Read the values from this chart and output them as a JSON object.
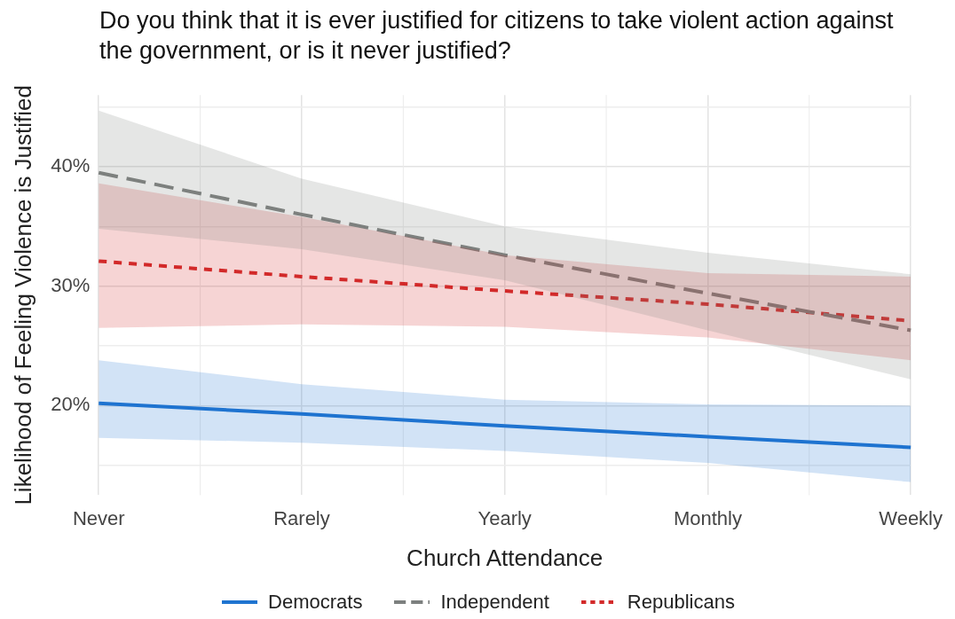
{
  "chart_data": {
    "type": "line",
    "title": "Do you think that it is ever justified for citizens to take violent action against the government, or is it never justified?",
    "xlabel": "Church Attendance",
    "ylabel": "Likelihood of Feeling Violence is Justified",
    "categories": [
      "Never",
      "Rarely",
      "Yearly",
      "Monthly",
      "Weekly"
    ],
    "series": [
      {
        "name": "Democrats",
        "color": "#1f74d0",
        "line_style": "solid",
        "values": [
          20.2,
          19.3,
          18.3,
          17.4,
          16.5
        ],
        "lower": [
          17.3,
          16.9,
          16.2,
          15.2,
          13.6
        ],
        "upper": [
          23.8,
          21.8,
          20.5,
          20.1,
          20.0
        ]
      },
      {
        "name": "Independent",
        "color": "#7d807f",
        "line_style": "dashed",
        "values": [
          39.5,
          36.0,
          32.6,
          29.4,
          26.3
        ],
        "lower": [
          34.8,
          33.1,
          30.5,
          26.3,
          22.2
        ],
        "upper": [
          44.7,
          39.0,
          35.0,
          32.8,
          31.0
        ]
      },
      {
        "name": "Republicans",
        "color": "#d32a2a",
        "line_style": "dotted",
        "values": [
          32.1,
          30.8,
          29.6,
          28.5,
          27.1
        ],
        "lower": [
          26.5,
          26.8,
          26.6,
          25.7,
          23.8
        ],
        "upper": [
          38.6,
          35.8,
          32.6,
          31.1,
          30.8
        ]
      }
    ],
    "ylim": [
      12.5,
      46
    ],
    "yticks": [
      {
        "value": 15,
        "label": null
      },
      {
        "value": 20,
        "label": "20%"
      },
      {
        "value": 25,
        "label": null
      },
      {
        "value": 30,
        "label": "30%"
      },
      {
        "value": 35,
        "label": null
      },
      {
        "value": 40,
        "label": "40%"
      },
      {
        "value": 45,
        "label": null
      }
    ],
    "grid": true,
    "legend": "bottom",
    "marker": "none"
  }
}
